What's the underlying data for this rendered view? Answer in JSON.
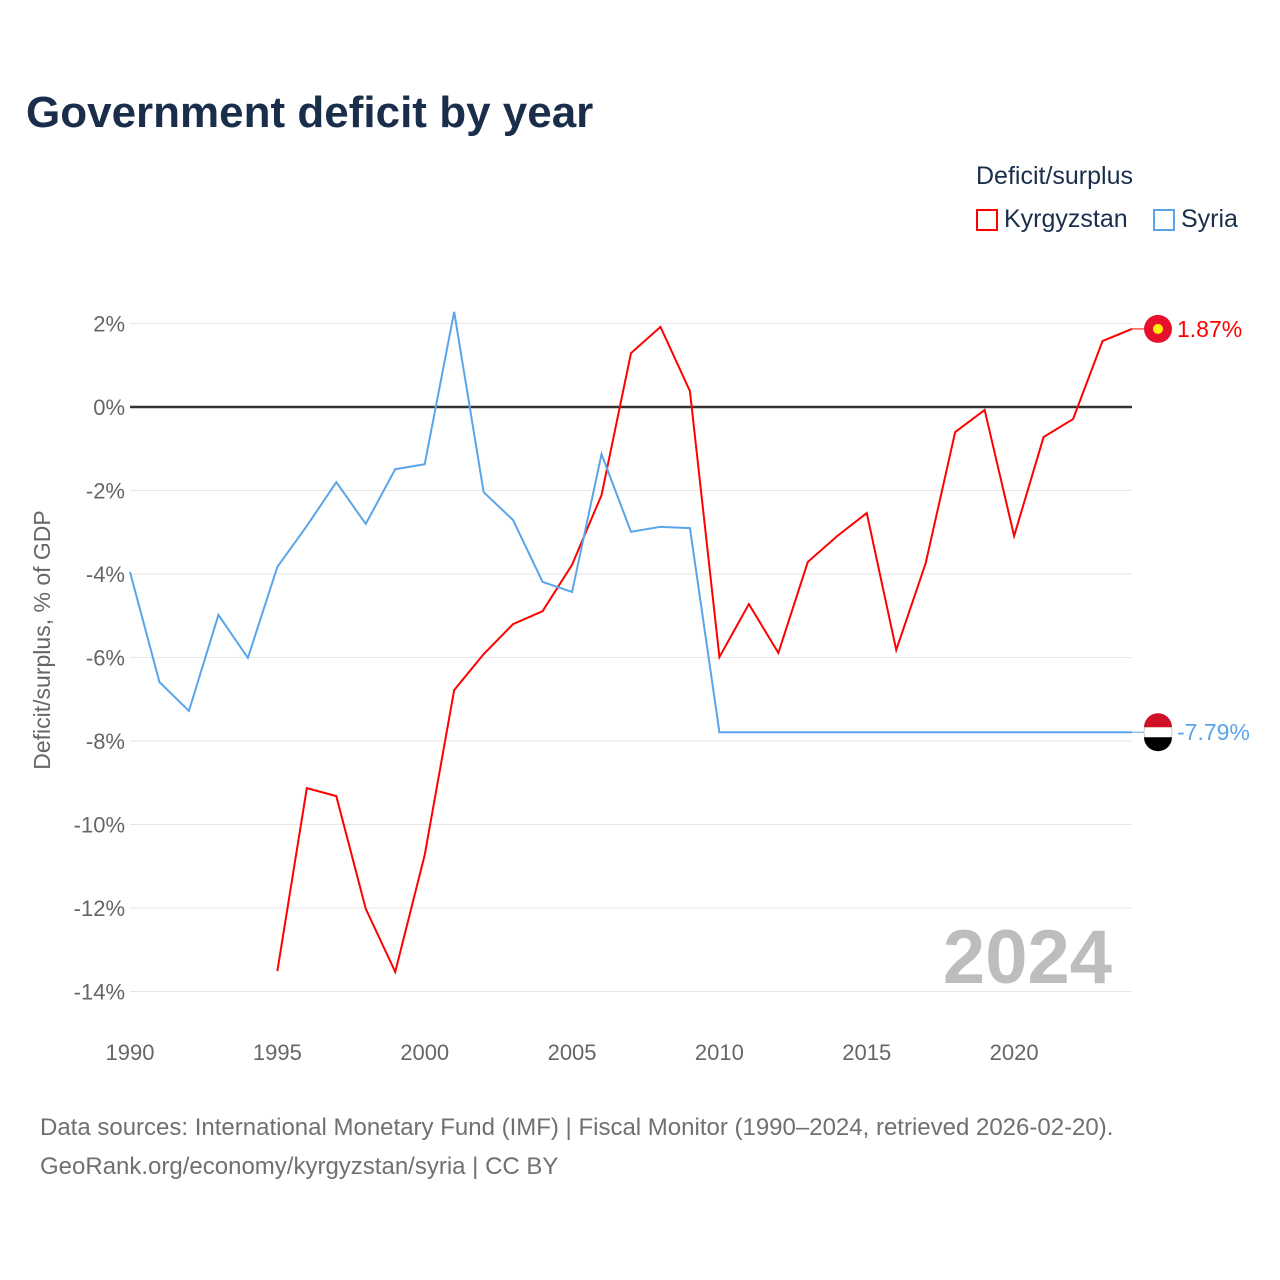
{
  "chart_data": {
    "type": "line",
    "title": "Government deficit by year",
    "xlabel": "",
    "ylabel": "Deficit/surplus, % of GDP",
    "xlim": [
      1990,
      2024
    ],
    "ylim": [
      -14,
      2
    ],
    "yticks": [
      2,
      0,
      -2,
      -4,
      -6,
      -8,
      -10,
      -12,
      -14
    ],
    "ytick_labels": [
      "2%",
      "0%",
      "-2%",
      "-4%",
      "-6%",
      "-8%",
      "-10%",
      "-12%",
      "-14%"
    ],
    "xticks": [
      1990,
      1995,
      2000,
      2005,
      2010,
      2015,
      2020
    ],
    "xtick_labels": [
      "1990",
      "1995",
      "2000",
      "2005",
      "2010",
      "2015",
      "2020"
    ],
    "grid": true,
    "legend_title": "Deficit/surplus",
    "legend_position": "top-right",
    "year_watermark": "2024",
    "series": [
      {
        "name": "Kyrgyzstan",
        "color": "#ff0000",
        "end_label": "1.87%",
        "x": [
          1995,
          1996,
          1997,
          1998,
          1999,
          2000,
          2001,
          2002,
          2003,
          2004,
          2005,
          2006,
          2007,
          2008,
          2009,
          2010,
          2011,
          2012,
          2013,
          2014,
          2015,
          2016,
          2017,
          2018,
          2019,
          2020,
          2021,
          2022,
          2023,
          2024
        ],
        "values": [
          -13.51,
          -9.13,
          -9.32,
          -12.02,
          -13.53,
          -10.73,
          -6.78,
          -5.92,
          -5.2,
          -4.89,
          -3.78,
          -2.11,
          1.29,
          1.92,
          0.38,
          -5.99,
          -4.72,
          -5.89,
          -3.71,
          -3.09,
          -2.54,
          -5.82,
          -3.74,
          -0.6,
          -0.07,
          -3.09,
          -0.72,
          -0.29,
          1.58,
          1.87
        ]
      },
      {
        "name": "Syria",
        "color": "#5aa5ea",
        "end_label": "-7.79%",
        "x": [
          1990,
          1991,
          1992,
          1993,
          1994,
          1995,
          1996,
          1997,
          1998,
          1999,
          2000,
          2001,
          2002,
          2003,
          2004,
          2005,
          2006,
          2007,
          2008,
          2009,
          2010,
          2011,
          2012,
          2013,
          2014,
          2015,
          2016,
          2017,
          2018,
          2019,
          2020,
          2021,
          2022,
          2023,
          2024
        ],
        "values": [
          -3.95,
          -6.59,
          -7.28,
          -4.98,
          -6.01,
          -3.83,
          -2.85,
          -1.8,
          -2.8,
          -1.49,
          -1.37,
          2.28,
          -2.04,
          -2.71,
          -4.19,
          -4.43,
          -1.13,
          -2.99,
          -2.87,
          -2.9,
          -7.79,
          -7.79,
          -7.79,
          -7.79,
          -7.79,
          -7.79,
          -7.79,
          -7.79,
          -7.79,
          -7.79,
          -7.79,
          -7.79,
          -7.79,
          -7.79,
          -7.79
        ]
      }
    ]
  },
  "footer": {
    "line1": "Data sources: International Monetary Fund (IMF) | Fiscal Monitor (1990–2024, retrieved 2026-02-20).",
    "line2": "GeoRank.org/economy/kyrgyzstan/syria | CC BY"
  }
}
